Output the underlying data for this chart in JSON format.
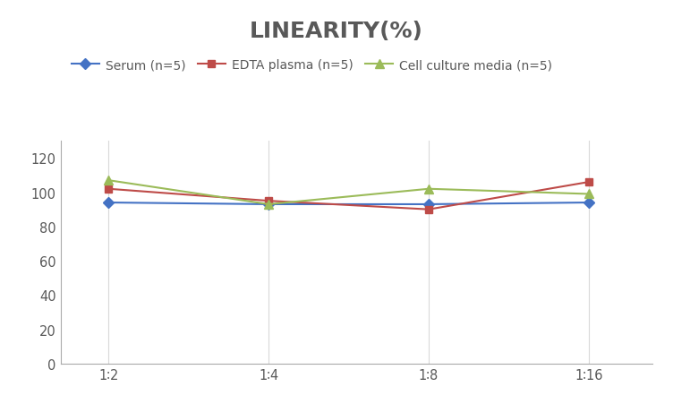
{
  "title": "LINEARITY(%)",
  "x_labels": [
    "1∶2",
    "1∶4",
    "1∶8",
    "1∶16"
  ],
  "x_positions": [
    0,
    1,
    2,
    3
  ],
  "series": [
    {
      "label": "Serum (n=5)",
      "values": [
        94,
        93,
        93,
        94
      ],
      "color": "#4472C4",
      "marker": "D",
      "marker_size": 6,
      "linewidth": 1.5
    },
    {
      "label": "EDTA plasma (n=5)",
      "values": [
        102,
        95,
        90,
        106
      ],
      "color": "#BE4B48",
      "marker": "s",
      "marker_size": 6,
      "linewidth": 1.5
    },
    {
      "label": "Cell culture media (n=5)",
      "values": [
        107,
        93,
        102,
        99
      ],
      "color": "#9BBB59",
      "marker": "^",
      "marker_size": 7,
      "linewidth": 1.5
    }
  ],
  "ylim": [
    0,
    130
  ],
  "yticks": [
    0,
    20,
    40,
    60,
    80,
    100,
    120
  ],
  "grid_color": "#D9D9D9",
  "background_color": "#FFFFFF",
  "title_fontsize": 18,
  "title_color": "#595959",
  "legend_fontsize": 10,
  "tick_fontsize": 10.5,
  "tick_color": "#595959"
}
